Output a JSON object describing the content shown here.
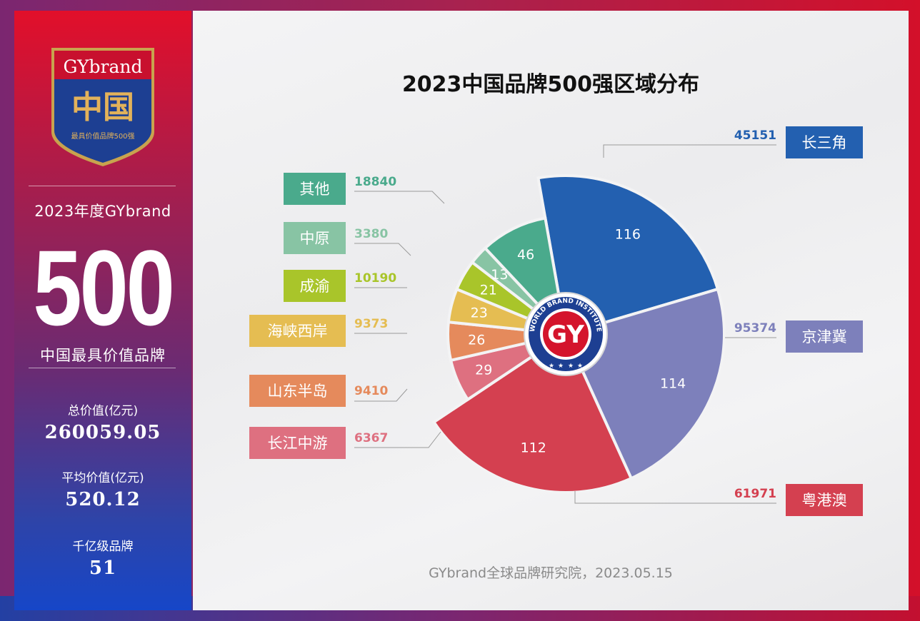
{
  "sidebar": {
    "logo": {
      "brand": "GYbrand",
      "country": "中国",
      "tagline": "最具价值品牌500强"
    },
    "year_title": "2023年度GYbrand",
    "big_number": "500",
    "subtitle": "中国最具价值品牌",
    "stats": [
      {
        "label": "总价值(亿元)",
        "value": "260059.05"
      },
      {
        "label": "平均价值(亿元)",
        "value": "520.12"
      },
      {
        "label": "千亿级品牌",
        "value": "51"
      }
    ]
  },
  "main": {
    "title": "2023中国品牌500强区域分布",
    "footer": "GYbrand全球品牌研究院，2023.05.15",
    "center_logo": {
      "text": "GY",
      "ring_text": "WORLD BRAND INSTITUTE"
    }
  },
  "chart_data": {
    "type": "pie",
    "title": "2023中国品牌500强区域分布",
    "slices": [
      {
        "label": "长三角",
        "count": 116,
        "value": 45151,
        "color": "#2360b0"
      },
      {
        "label": "京津冀",
        "count": 114,
        "value": 95374,
        "color": "#7d80bb"
      },
      {
        "label": "粤港澳",
        "count": 112,
        "value": 61971,
        "color": "#d44050"
      },
      {
        "label": "长江中游",
        "count": 29,
        "value": 6367,
        "color": "#de7080"
      },
      {
        "label": "山东半岛",
        "count": 26,
        "value": 9410,
        "color": "#e58a5c"
      },
      {
        "label": "海峡西岸",
        "count": 23,
        "value": 9373,
        "color": "#e5bd52"
      },
      {
        "label": "成渝",
        "count": 21,
        "value": 10190,
        "color": "#a9c52a"
      },
      {
        "label": "中原",
        "count": 13,
        "value": 3380,
        "color": "#88c4a4"
      },
      {
        "label": "其他",
        "count": 46,
        "value": 18840,
        "color": "#4aaa8c"
      }
    ]
  }
}
